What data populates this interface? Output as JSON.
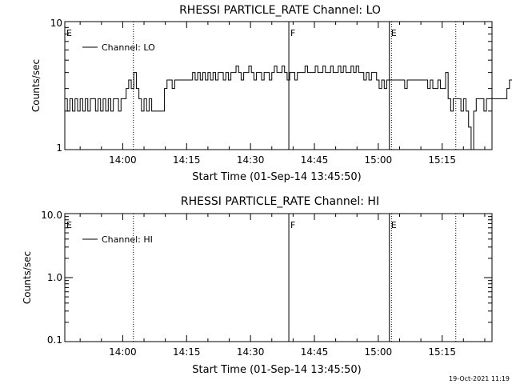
{
  "footer_timestamp": "19-Oct-2021 11:19",
  "chart_data": [
    {
      "type": "line",
      "title": "RHESSI PARTICLE_RATE Channel: LO",
      "xlabel": "Start Time (01-Sep-14 13:45:50)",
      "ylabel": "Counts/sec",
      "y_scale": "log",
      "ylim": [
        1,
        10
      ],
      "y_ticks": [
        "1",
        "10"
      ],
      "x_ticks": [
        "14:00",
        "14:15",
        "14:30",
        "14:45",
        "15:00",
        "15:15"
      ],
      "x_tick_minutes": [
        0,
        15,
        30,
        45,
        60,
        75
      ],
      "xlim_minutes": [
        -13.6,
        86.7
      ],
      "legend": "Channel: LO",
      "legend_position": "top-left",
      "vertical_markers": [
        {
          "label": "E",
          "minute": -13.6,
          "style": "solid"
        },
        {
          "label": "",
          "minute": 2.5,
          "style": "dotted"
        },
        {
          "label": "F",
          "minute": 39,
          "style": "solid"
        },
        {
          "label": "E",
          "minute": 62.6,
          "style": "solid"
        },
        {
          "label": "",
          "minute": 63.1,
          "style": "dotted"
        },
        {
          "label": "",
          "minute": 78.2,
          "style": "dotted"
        }
      ],
      "series": [
        {
          "name": "Channel: LO",
          "x_start_minute": -13.6,
          "x_step_minute": 0.6,
          "values": [
            2.5,
            2,
            2.5,
            2,
            2.5,
            2,
            2.5,
            2,
            2.5,
            2,
            2.5,
            2.5,
            2,
            2.5,
            2,
            2.5,
            2,
            2.5,
            2,
            2.5,
            2.5,
            2,
            2.5,
            2.5,
            3,
            3.5,
            3,
            4,
            3,
            2.5,
            2,
            2.5,
            2,
            2.5,
            2,
            2,
            2,
            2,
            2,
            3,
            3.5,
            3.5,
            3,
            3.5,
            3.5,
            3.5,
            3.5,
            3.5,
            3.5,
            3.5,
            4,
            3.5,
            4,
            3.5,
            4,
            3.5,
            4,
            3.5,
            4,
            3.5,
            4,
            4,
            3.5,
            4,
            3.5,
            4,
            4,
            4.5,
            4,
            3.5,
            4,
            4,
            4.5,
            4,
            3.5,
            4,
            4,
            3.5,
            4,
            4,
            3.5,
            4,
            4.5,
            4,
            4,
            4.5,
            4,
            3.5,
            4,
            4,
            3.5,
            4,
            4,
            4,
            4.5,
            4,
            4,
            4,
            4.5,
            4,
            4,
            4.5,
            4,
            4,
            4.5,
            4,
            4,
            4.5,
            4,
            4.5,
            4,
            4,
            4.5,
            4,
            4.5,
            4,
            4,
            3.5,
            4,
            3.5,
            4,
            4,
            3.5,
            3,
            3.5,
            3,
            3.5,
            3.5,
            3.5,
            3.5,
            3.5,
            3.5,
            3.5,
            3,
            3.5,
            3.5,
            3.5,
            3.5,
            3.5,
            3.5,
            3.5,
            3.5,
            3,
            3.5,
            3,
            3,
            3.5,
            3,
            3,
            4,
            2.5,
            2,
            2.5,
            2.5,
            2.5,
            2,
            2.5,
            2,
            1.5,
            1,
            2,
            2.5,
            2.5,
            2.5,
            2,
            2.5,
            2.5,
            2.5,
            2.5,
            2.5,
            2.5,
            2.5,
            2.5,
            3,
            3.5,
            3.5
          ]
        }
      ]
    },
    {
      "type": "line",
      "title": "RHESSI PARTICLE_RATE Channel: HI",
      "xlabel": "Start Time (01-Sep-14 13:45:50)",
      "ylabel": "Counts/sec",
      "y_scale": "log",
      "ylim": [
        0.1,
        10
      ],
      "y_ticks": [
        "0.1",
        "1.0",
        "10.0"
      ],
      "x_ticks": [
        "14:00",
        "14:15",
        "14:30",
        "14:45",
        "15:00",
        "15:15"
      ],
      "x_tick_minutes": [
        0,
        15,
        30,
        45,
        60,
        75
      ],
      "xlim_minutes": [
        -13.6,
        86.7
      ],
      "legend": "Channel: HI",
      "legend_position": "top-left",
      "vertical_markers": [
        {
          "label": "E",
          "minute": -13.6,
          "style": "solid"
        },
        {
          "label": "",
          "minute": 2.5,
          "style": "dotted"
        },
        {
          "label": "F",
          "minute": 39,
          "style": "solid"
        },
        {
          "label": "E",
          "minute": 62.6,
          "style": "solid"
        },
        {
          "label": "",
          "minute": 63.1,
          "style": "dotted"
        },
        {
          "label": "",
          "minute": 78.2,
          "style": "dotted"
        }
      ],
      "series": [
        {
          "name": "Channel: HI",
          "values": []
        }
      ]
    }
  ]
}
